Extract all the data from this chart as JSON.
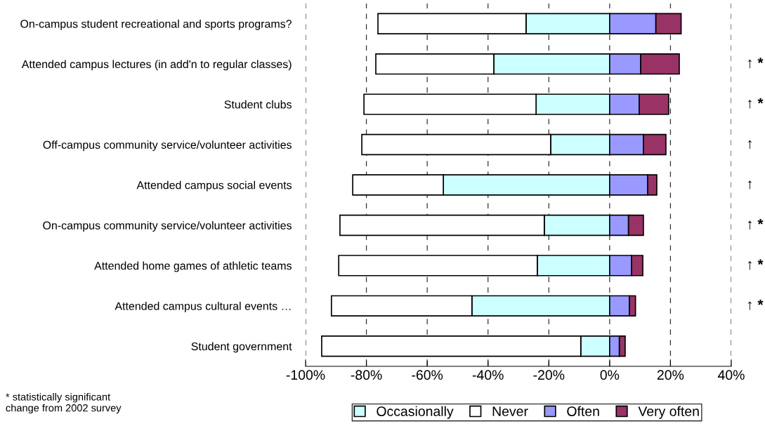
{
  "chart_data": {
    "type": "bar",
    "orientation": "horizontal",
    "stacked": true,
    "categories": [
      "On-campus student recreational and sports programs?",
      "Attended campus lectures (in add'n to regular classes)",
      "Student clubs",
      "Off-campus community service/volunteer activities",
      "Attended campus social events",
      "On-campus community service/volunteer activities",
      "Attended home games of athletic teams",
      "Attended campus cultural events …",
      "Student government"
    ],
    "series": [
      {
        "name": "Occasionally",
        "color": "#ccffff",
        "values": [
          -27.5,
          -38.1,
          -24.2,
          -19.4,
          -54.7,
          -21.5,
          -23.8,
          -45.3,
          -9.5
        ]
      },
      {
        "name": "Never",
        "color": "#ffffff",
        "values": [
          -48.7,
          -38.8,
          -56.6,
          -62.1,
          -29.8,
          -67.2,
          -65.3,
          -46.2,
          -85.2
        ]
      },
      {
        "name": "Often",
        "color": "#9999ff",
        "values": [
          15.2,
          10.2,
          9.7,
          11.1,
          12.5,
          6.2,
          7.2,
          6.5,
          3.2
        ]
      },
      {
        "name": "Very often",
        "color": "#993366",
        "values": [
          8.3,
          12.7,
          9.7,
          7.4,
          3.0,
          4.9,
          3.7,
          2.0,
          1.9
        ]
      }
    ],
    "xlim": [
      -100,
      40
    ],
    "xticks": [
      {
        "value": -100,
        "label": "-100%"
      },
      {
        "value": -80,
        "label": "-80%"
      },
      {
        "value": -60,
        "label": "-60%"
      },
      {
        "value": -40,
        "label": "-40%"
      },
      {
        "value": -20,
        "label": "-20%"
      },
      {
        "value": 0,
        "label": "0%"
      },
      {
        "value": 20,
        "label": "20%"
      },
      {
        "value": 40,
        "label": "40%"
      }
    ],
    "grid": "x",
    "legend": "bottom",
    "annotations": [
      "↑ *",
      "↑ *",
      "↑",
      "↑",
      "↑ *",
      "↑ *",
      "↑ *",
      "* statistically significant\nchange from 2002 survey"
    ]
  }
}
